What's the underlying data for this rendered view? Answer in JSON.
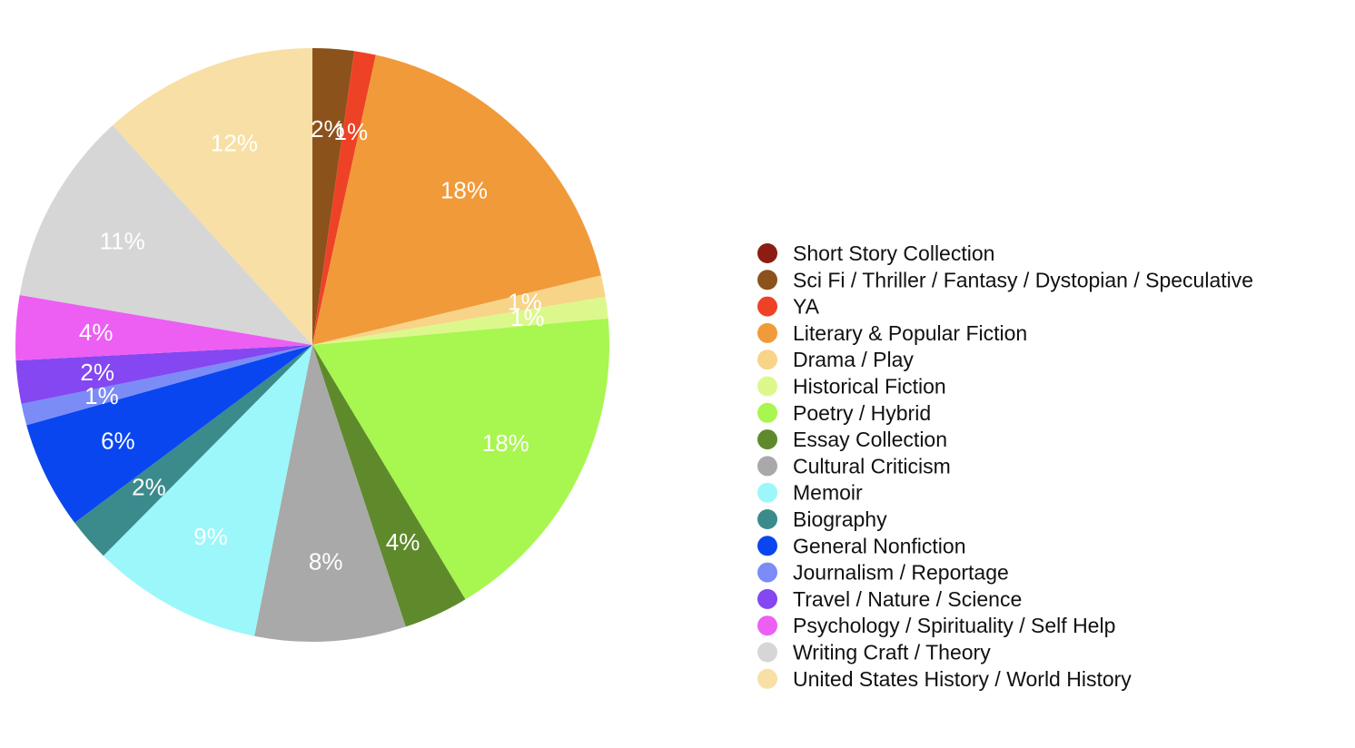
{
  "chart_data": {
    "type": "pie",
    "title": "",
    "legend_position": "right",
    "start_angle_deg": 0,
    "direction": "clockwise",
    "slices": [
      {
        "label": "Short Story Collection",
        "value": 0.0,
        "display": "",
        "color": "#8b1d12"
      },
      {
        "label": "Sci Fi / Thriller / Fantasy / Dystopian / Speculative",
        "value": 2.3,
        "display": "2%",
        "color": "#8b521c"
      },
      {
        "label": "YA",
        "value": 1.2,
        "display": "1%",
        "color": "#ee4227"
      },
      {
        "label": "Literary & Popular Fiction",
        "value": 18.2,
        "display": "18%",
        "color": "#f19a3a"
      },
      {
        "label": "Drama / Play",
        "value": 1.2,
        "display": "1%",
        "color": "#f8d488"
      },
      {
        "label": "Historical Fiction",
        "value": 1.2,
        "display": "1%",
        "color": "#dcf88c"
      },
      {
        "label": "Poetry / Hybrid",
        "value": 18.2,
        "display": "18%",
        "color": "#a8f650"
      },
      {
        "label": "Essay Collection",
        "value": 3.6,
        "display": "4%",
        "color": "#5e8a2c"
      },
      {
        "label": "Cultural Criticism",
        "value": 8.4,
        "display": "8%",
        "color": "#a9a9a9"
      },
      {
        "label": "Memoir",
        "value": 9.5,
        "display": "9%",
        "color": "#9bf7fa"
      },
      {
        "label": "Biography",
        "value": 2.4,
        "display": "2%",
        "color": "#3b8b8c"
      },
      {
        "label": "General Nonfiction",
        "value": 6.0,
        "display": "6%",
        "color": "#0a46ef"
      },
      {
        "label": "Journalism / Reportage",
        "value": 1.2,
        "display": "1%",
        "color": "#7b8cf7"
      },
      {
        "label": "Travel / Nature / Science",
        "value": 2.4,
        "display": "2%",
        "color": "#8447f1"
      },
      {
        "label": "Psychology / Spirituality / Self Help",
        "value": 3.6,
        "display": "4%",
        "color": "#ed5ef3"
      },
      {
        "label": "Writing Craft / Theory",
        "value": 10.8,
        "display": "11%",
        "color": "#d6d6d6"
      },
      {
        "label": "United States History / World History",
        "value": 12.0,
        "display": "12%",
        "color": "#f8dfa5"
      }
    ]
  }
}
